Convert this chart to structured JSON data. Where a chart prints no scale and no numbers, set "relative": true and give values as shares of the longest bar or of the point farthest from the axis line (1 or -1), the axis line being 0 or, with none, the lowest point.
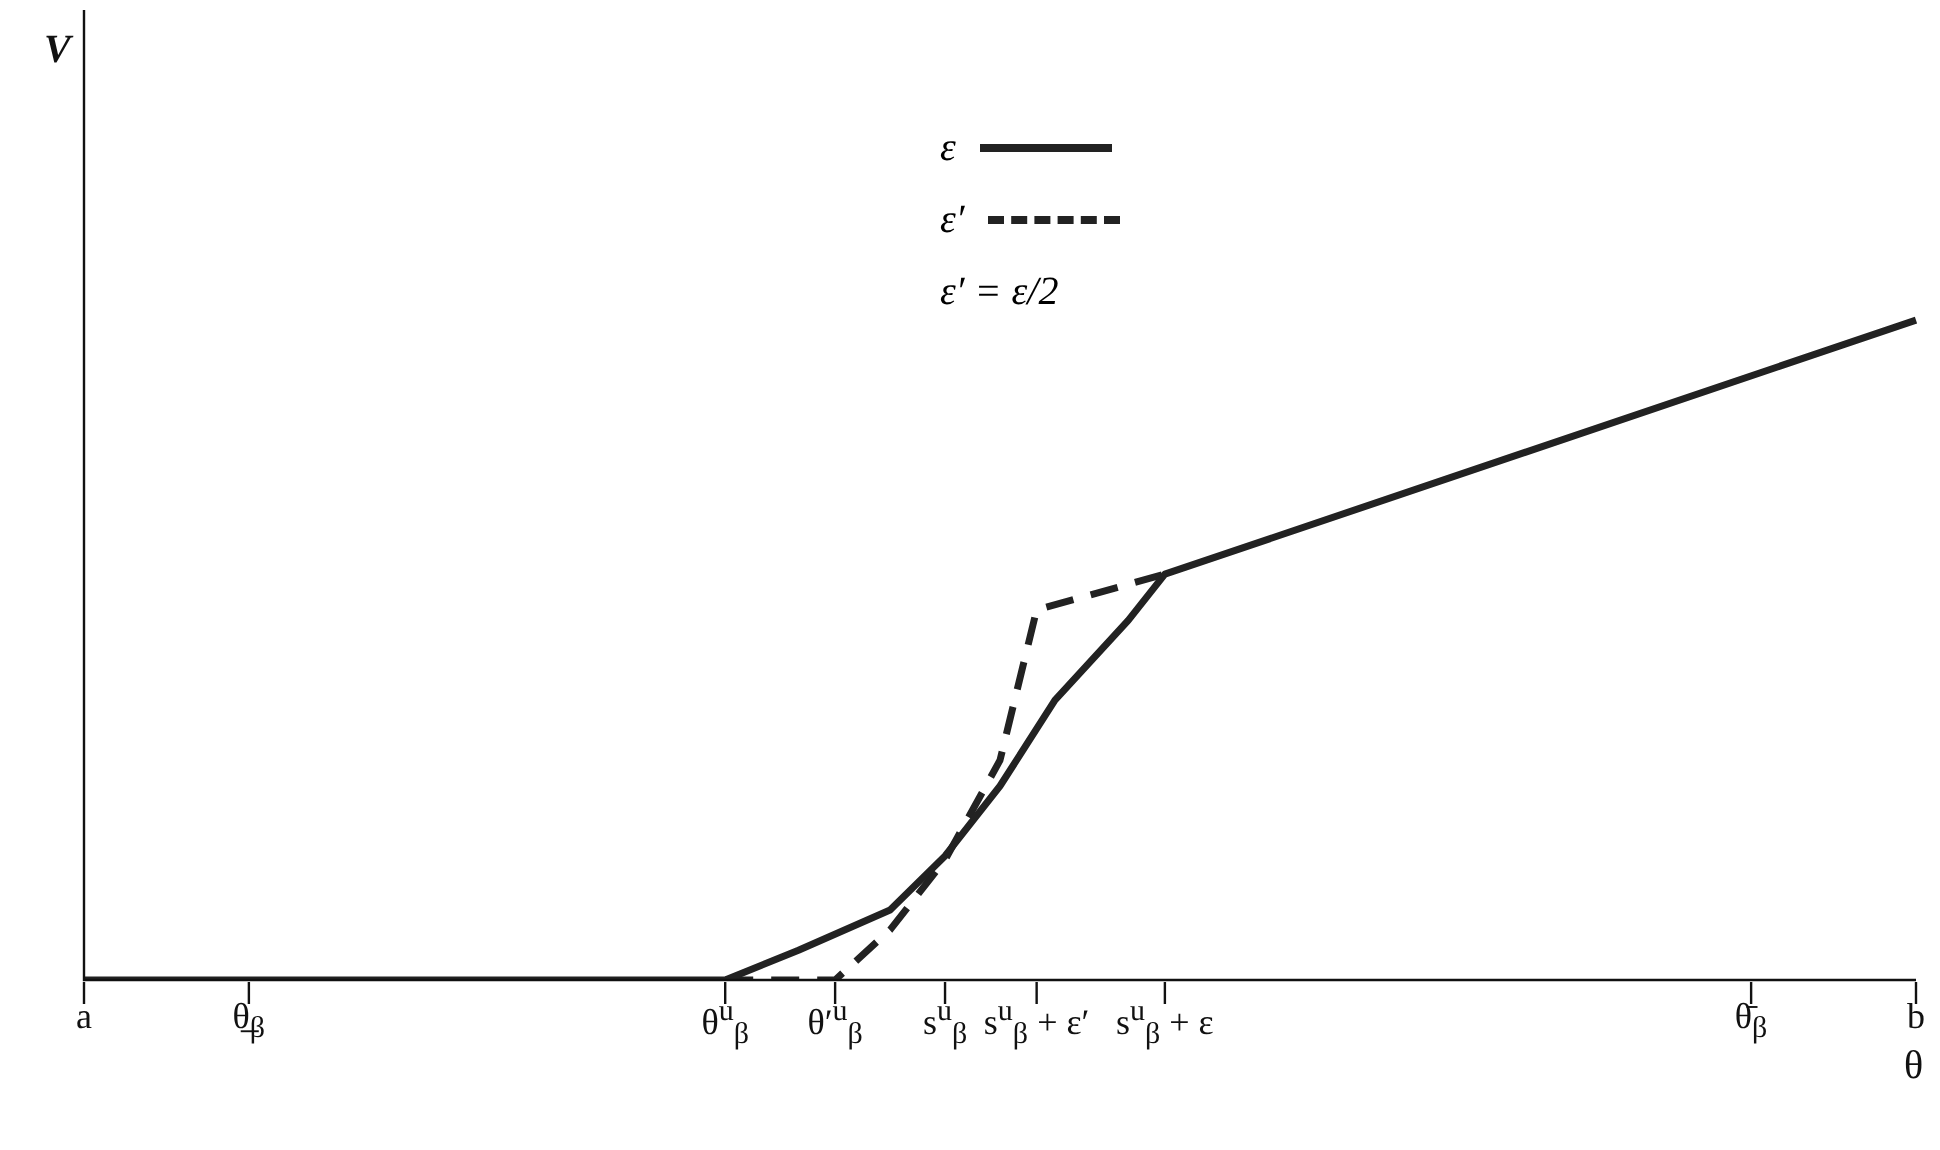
{
  "chart_data": {
    "type": "line",
    "relative": true,
    "xlabel": "θ",
    "categories": [
      "a",
      null,
      null,
      null,
      null,
      null,
      null,
      null,
      null,
      "θ̲$_{β}$",
      null,
      null,
      null,
      null,
      null,
      null,
      null,
      null,
      null,
      null,
      null,
      null,
      null,
      null,
      null,
      null,
      null,
      null,
      null,
      null,
      null,
      null,
      null,
      null,
      null,
      "θ$^{u}$$_{β}$",
      null,
      null,
      null,
      null,
      null,
      "θ′$^{u}$$_{β}$",
      null,
      null,
      null,
      null,
      null,
      "s$^{u}$$_{β}$",
      null,
      null,
      null,
      null,
      "s$^{u}$$_{β}$ + ε′",
      null,
      null,
      null,
      null,
      null,
      null,
      "s$^{u}$$_{β}$ + ε",
      null,
      null,
      null,
      null,
      null,
      null,
      null,
      null,
      null,
      null,
      null,
      null,
      null,
      null,
      null,
      null,
      null,
      null,
      null,
      null,
      null,
      null,
      null,
      null,
      null,
      null,
      null,
      null,
      null,
      null,
      null,
      "θ̄$_{β}$",
      null,
      null,
      null,
      null,
      null,
      null,
      null,
      null,
      "b"
    ],
    "series": [
      {
        "name": "ε",
        "color": "#222222",
        "line_style": "solid",
        "values": [
          0,
          null,
          null,
          null,
          null,
          null,
          null,
          null,
          null,
          null,
          null,
          null,
          null,
          null,
          null,
          null,
          null,
          null,
          null,
          null,
          null,
          null,
          null,
          null,
          null,
          null,
          null,
          null,
          null,
          null,
          null,
          null,
          null,
          null,
          null,
          0,
          null,
          null,
          null,
          0.045,
          null,
          null,
          null,
          null,
          0.106,
          null,
          null,
          0.188,
          null,
          null,
          0.294,
          null,
          null,
          0.424,
          null,
          null,
          null,
          0.545,
          null,
          0.615,
          null,
          null,
          null,
          null,
          null,
          null,
          null,
          null,
          null,
          null,
          null,
          null,
          null,
          null,
          null,
          null,
          null,
          null,
          null,
          null,
          null,
          null,
          null,
          null,
          null,
          null,
          null,
          null,
          null,
          null,
          null,
          null,
          null,
          null,
          null,
          null,
          null,
          null,
          null,
          null,
          1
        ]
      },
      {
        "name": "ε′",
        "color": "#222222",
        "line_style": "dashed",
        "values": [
          null,
          null,
          null,
          null,
          null,
          null,
          null,
          null,
          null,
          null,
          null,
          null,
          null,
          null,
          null,
          null,
          null,
          null,
          null,
          null,
          null,
          null,
          null,
          null,
          null,
          null,
          null,
          null,
          null,
          null,
          null,
          null,
          null,
          null,
          null,
          0,
          null,
          null,
          null,
          null,
          null,
          0,
          null,
          null,
          0.076,
          null,
          null,
          0.182,
          null,
          null,
          0.333,
          null,
          0.561,
          null,
          null,
          null,
          null,
          null,
          null,
          0.615,
          null,
          null,
          null,
          null,
          null,
          null,
          null,
          null,
          null,
          null,
          null,
          null,
          null,
          null,
          null,
          null,
          null,
          null,
          null,
          null,
          null,
          null,
          null,
          null,
          null,
          null,
          null,
          null,
          null,
          null,
          null,
          null,
          null,
          null,
          null,
          null,
          null,
          null,
          null,
          null,
          null
        ]
      }
    ],
    "legend": "top",
    "marker": "none",
    "grid": false,
    "annotations": [
      "V",
      "ε′ = ε/2"
    ]
  }
}
